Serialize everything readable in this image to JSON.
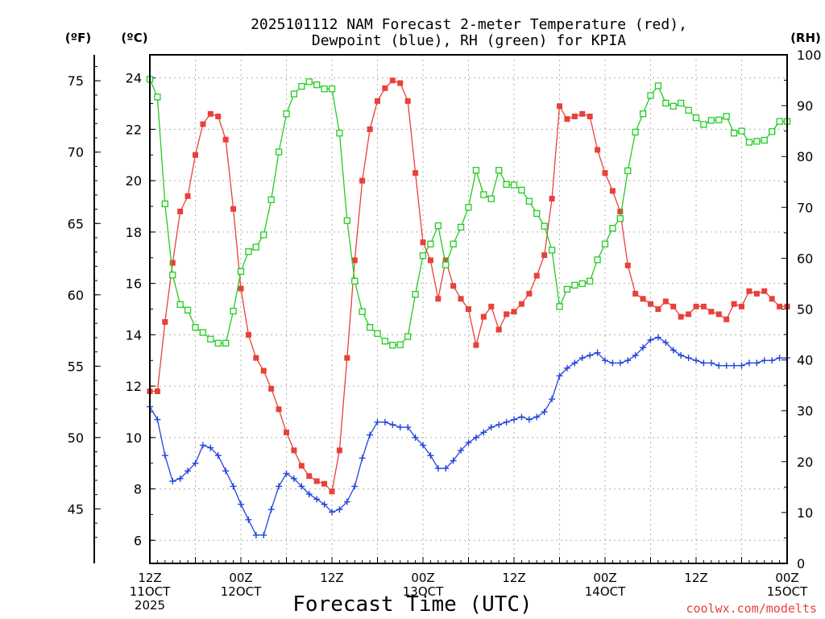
{
  "chart_data": {
    "type": "line",
    "title_line1": "2025101112 NAM Forecast 2-meter Temperature (red),",
    "title_line2": "Dewpoint (blue), RH (green) for KPIA",
    "xlabel": "Forecast Time (UTC)",
    "credit": "coolwx.com/modelts",
    "units": {
      "f": "(ºF)",
      "c": "(ºC)",
      "rh": "(RH)"
    },
    "x_ticks": [
      {
        "hour": 0,
        "lines": [
          "12Z",
          "11OCT",
          "2025"
        ]
      },
      {
        "hour": 12,
        "lines": [
          "00Z",
          "12OCT"
        ]
      },
      {
        "hour": 24,
        "lines": [
          "12Z"
        ]
      },
      {
        "hour": 36,
        "lines": [
          "00Z",
          "13OCT"
        ]
      },
      {
        "hour": 48,
        "lines": [
          "12Z"
        ]
      },
      {
        "hour": 60,
        "lines": [
          "00Z",
          "14OCT"
        ]
      },
      {
        "hour": 72,
        "lines": [
          "12Z"
        ]
      },
      {
        "hour": 84,
        "lines": [
          "00Z",
          "15OCT"
        ]
      }
    ],
    "xlim": [
      0,
      84
    ],
    "c_ticks": [
      "6",
      "8",
      "10",
      "12",
      "14",
      "16",
      "18",
      "20",
      "22",
      "24"
    ],
    "c_ylim": [
      5.1,
      24.9
    ],
    "f_ticks": [
      "45",
      "50",
      "55",
      "60",
      "65",
      "70",
      "75"
    ],
    "rh_ticks": [
      "0",
      "10",
      "20",
      "30",
      "40",
      "50",
      "60",
      "70",
      "80",
      "90",
      "100"
    ],
    "rh_ylim": [
      0,
      100
    ],
    "series": [
      {
        "key": "temperature",
        "unit": "°C",
        "color": "#e8403a",
        "marker": "filled-square",
        "x": [
          0,
          1,
          2,
          3,
          4,
          5,
          6,
          7,
          8,
          9,
          10,
          11,
          12,
          13,
          14,
          15,
          16,
          17,
          18,
          19,
          20,
          21,
          22,
          23,
          24,
          25,
          26,
          27,
          28,
          29,
          30,
          31,
          32,
          33,
          34,
          35,
          36,
          37,
          38,
          39,
          40,
          41,
          42,
          43,
          44,
          45,
          46,
          47,
          48,
          49,
          50,
          51,
          52,
          53,
          54,
          55,
          56,
          57,
          58,
          59,
          60,
          61,
          62,
          63,
          64,
          65,
          66,
          67,
          68,
          69,
          70,
          71,
          72,
          73,
          74,
          75,
          76,
          77,
          78,
          79,
          80,
          81,
          82,
          83,
          84
        ],
        "y": [
          11.8,
          11.8,
          14.5,
          16.8,
          18.8,
          19.4,
          21.0,
          22.2,
          22.6,
          22.5,
          21.6,
          18.9,
          15.8,
          14.0,
          13.1,
          12.6,
          11.9,
          11.1,
          10.2,
          9.5,
          8.9,
          8.5,
          8.3,
          8.2,
          7.9,
          9.5,
          13.1,
          16.9,
          20.0,
          22.0,
          23.1,
          23.6,
          23.9,
          23.8,
          23.1,
          20.3,
          17.6,
          16.9,
          15.4,
          16.9,
          15.9,
          15.4,
          15.0,
          13.6,
          14.7,
          15.1,
          14.2,
          14.8,
          14.9,
          15.2,
          15.6,
          16.3,
          17.1,
          19.3,
          22.9,
          22.4,
          22.5,
          22.6,
          22.5,
          21.2,
          20.3,
          19.6,
          18.8,
          16.7,
          15.6,
          15.4,
          15.2,
          15.0,
          15.3,
          15.1,
          14.7,
          14.8,
          15.1,
          15.1,
          14.9,
          14.8,
          14.6,
          15.2,
          15.1,
          15.7,
          15.6,
          15.7,
          15.4,
          15.1,
          15.1
        ]
      },
      {
        "key": "dewpoint",
        "unit": "°C",
        "color": "#2244dd",
        "marker": "plus",
        "x": [
          0,
          1,
          2,
          3,
          4,
          5,
          6,
          7,
          8,
          9,
          10,
          11,
          12,
          13,
          14,
          15,
          16,
          17,
          18,
          19,
          20,
          21,
          22,
          23,
          24,
          25,
          26,
          27,
          28,
          29,
          30,
          31,
          32,
          33,
          34,
          35,
          36,
          37,
          38,
          39,
          40,
          41,
          42,
          43,
          44,
          45,
          46,
          47,
          48,
          49,
          50,
          51,
          52,
          53,
          54,
          55,
          56,
          57,
          58,
          59,
          60,
          61,
          62,
          63,
          64,
          65,
          66,
          67,
          68,
          69,
          70,
          71,
          72,
          73,
          74,
          75,
          76,
          77,
          78,
          79,
          80,
          81,
          82,
          83,
          84
        ],
        "y": [
          11.2,
          10.7,
          9.3,
          8.3,
          8.4,
          8.7,
          9.0,
          9.7,
          9.6,
          9.3,
          8.7,
          8.1,
          7.4,
          6.8,
          6.2,
          6.2,
          7.2,
          8.1,
          8.6,
          8.4,
          8.1,
          7.8,
          7.6,
          7.4,
          7.1,
          7.2,
          7.5,
          8.1,
          9.2,
          10.1,
          10.6,
          10.6,
          10.5,
          10.4,
          10.4,
          10.0,
          9.7,
          9.3,
          8.8,
          8.8,
          9.1,
          9.5,
          9.8,
          10.0,
          10.2,
          10.4,
          10.5,
          10.6,
          10.7,
          10.8,
          10.7,
          10.8,
          11.0,
          11.5,
          12.4,
          12.7,
          12.9,
          13.1,
          13.2,
          13.3,
          13.0,
          12.9,
          12.9,
          13.0,
          13.2,
          13.5,
          13.8,
          13.9,
          13.7,
          13.4,
          13.2,
          13.1,
          13.0,
          12.9,
          12.9,
          12.8,
          12.8,
          12.8,
          12.8,
          12.9,
          12.9,
          13.0,
          13.0,
          13.1,
          13.1
        ]
      },
      {
        "key": "rh",
        "unit": "%",
        "color": "#22cc22",
        "marker": "open-square",
        "x": [
          0,
          1,
          2,
          3,
          4,
          5,
          6,
          7,
          8,
          9,
          10,
          11,
          12,
          13,
          14,
          15,
          16,
          17,
          18,
          19,
          20,
          21,
          22,
          23,
          24,
          25,
          26,
          27,
          28,
          29,
          30,
          31,
          32,
          33,
          34,
          35,
          36,
          37,
          38,
          39,
          40,
          41,
          42,
          43,
          44,
          45,
          46,
          47,
          48,
          49,
          50,
          51,
          52,
          53,
          54,
          55,
          56,
          57,
          58,
          59,
          60,
          61,
          62,
          63,
          64,
          65,
          66,
          67,
          68,
          69,
          70,
          71,
          72,
          73,
          74,
          75,
          76,
          77,
          78,
          79,
          80,
          81,
          82,
          83,
          84
        ],
        "y": [
          95.2,
          91.7,
          70.7,
          56.7,
          50.9,
          49.8,
          46.4,
          45.4,
          44.1,
          43.3,
          43.3,
          49.6,
          57.4,
          61.3,
          62.2,
          64.6,
          71.5,
          80.9,
          88.4,
          92.3,
          93.8,
          94.7,
          94.1,
          93.3,
          93.3,
          84.6,
          67.4,
          55.5,
          49.5,
          46.4,
          45.2,
          43.7,
          42.9,
          43.0,
          44.6,
          52.9,
          60.5,
          62.8,
          66.4,
          58.7,
          62.8,
          66.1,
          70.0,
          77.3,
          72.5,
          71.7,
          77.3,
          74.5,
          74.4,
          73.4,
          71.2,
          68.8,
          66.3,
          61.6,
          50.5,
          53.9,
          54.7,
          55.0,
          55.5,
          59.7,
          62.8,
          65.9,
          67.8,
          77.2,
          84.8,
          88.4,
          92.0,
          93.9,
          90.5,
          89.9,
          90.5,
          89.1,
          87.6,
          86.3,
          87.1,
          87.2,
          87.9,
          84.6,
          85.0,
          82.8,
          83.0,
          83.2,
          84.9,
          86.9,
          86.9
        ]
      }
    ]
  }
}
